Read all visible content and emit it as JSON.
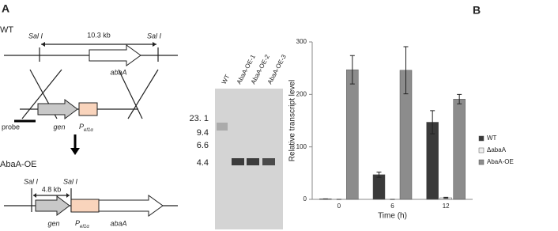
{
  "panel_a": {
    "label": "A",
    "wt": {
      "title": "WT",
      "sal_left": "Sal I",
      "sal_right": "Sal I",
      "distance": "10.3 kb",
      "gene": "abaA"
    },
    "construct": {
      "probe": "probe",
      "gene": "gen",
      "promoter": {
        "main": "P",
        "sub": "ef1α"
      }
    },
    "oe": {
      "title": "AbaA-OE",
      "sal_left": "Sal I",
      "sal_right": "Sal I",
      "distance": "4.8 kb",
      "gene_1": "gen",
      "promoter": {
        "main": "P",
        "sub": "ef1α"
      },
      "gene_2": "abaA"
    },
    "gel": {
      "lanes": [
        "WT",
        "AbaA-OE-1",
        "AbaA-OE-2",
        "AbaA-OE-3"
      ],
      "markers": [
        "23. 1",
        "9.4",
        "6.6",
        "4.4"
      ]
    }
  },
  "chart_data": {
    "type": "bar",
    "panel_label": "B",
    "ylabel": "Relative transcript level",
    "xlabel": "Time (h)",
    "categories": [
      "0",
      "6",
      "12"
    ],
    "ylim": [
      0,
      300
    ],
    "yticks": [
      0,
      100,
      200,
      300
    ],
    "series": [
      {
        "name": "WT",
        "color": "#3a3a3a",
        "values": [
          1,
          47,
          147
        ],
        "errors": [
          0,
          5,
          22
        ]
      },
      {
        "name": "ΔabaA",
        "color": "#eeeeee",
        "values": [
          0,
          0,
          3
        ],
        "errors": [
          0,
          0,
          1
        ]
      },
      {
        "name": "AbaA-OE",
        "color": "#8c8c8c",
        "values": [
          247,
          246,
          191
        ],
        "errors": [
          27,
          45,
          9
        ]
      }
    ]
  }
}
